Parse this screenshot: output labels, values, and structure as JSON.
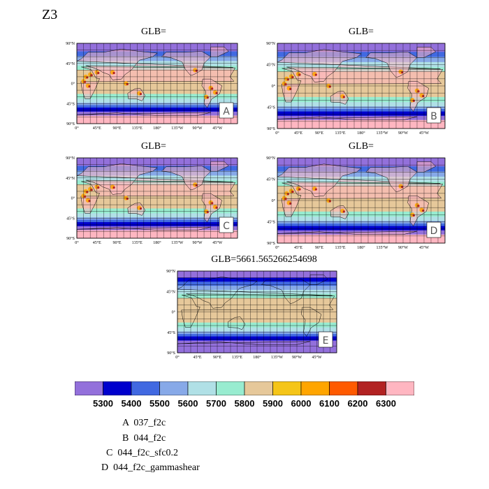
{
  "figure": {
    "title": "Z3"
  },
  "chart_data": [
    {
      "type": "heatmap",
      "panel": "A",
      "title": "GLB=",
      "tag": "A",
      "x_ticks": [
        "0°",
        "45°E",
        "90°E",
        "135°E",
        "180°",
        "135°W",
        "90°W",
        "45°W"
      ],
      "y_ticks": [
        "90°N",
        "45°N",
        "0°",
        "45°S",
        "90°S"
      ]
    },
    {
      "type": "heatmap",
      "panel": "B",
      "title": "GLB=",
      "tag": "B",
      "x_ticks": [
        "0°",
        "45°E",
        "90°E",
        "135°E",
        "180°",
        "135°W",
        "90°W",
        "45°W"
      ],
      "y_ticks": [
        "90°N",
        "45°N",
        "0°",
        "45°S",
        "90°S"
      ]
    },
    {
      "type": "heatmap",
      "panel": "C",
      "title": "GLB=",
      "tag": "C",
      "x_ticks": [
        "0°",
        "45°E",
        "90°E",
        "135°E",
        "180°",
        "135°W",
        "90°W",
        "45°W"
      ],
      "y_ticks": [
        "90°N",
        "45°N",
        "0°",
        "45°S",
        "90°S"
      ]
    },
    {
      "type": "heatmap",
      "panel": "D",
      "title": "GLB=",
      "tag": "D",
      "x_ticks": [
        "0°",
        "45°E",
        "90°E",
        "135°E",
        "180°",
        "135°W",
        "90°W",
        "45°W"
      ],
      "y_ticks": [
        "90°N",
        "45°N",
        "0°",
        "45°S",
        "90°S"
      ]
    },
    {
      "type": "heatmap",
      "panel": "E",
      "title": "GLB=5661.565266254698",
      "tag": "E",
      "x_ticks": [
        "0°",
        "45°E",
        "90°E",
        "135°E",
        "180°",
        "135°W",
        "90°W",
        "45°W"
      ],
      "y_ticks": [
        "90°N",
        "45°N",
        "0°",
        "45°S",
        "90°S"
      ]
    }
  ],
  "colorbar": {
    "colors": [
      "#9370db",
      "#0000cd",
      "#4169e1",
      "#87a9e8",
      "#b0e0e6",
      "#98ecd0",
      "#e6c89a",
      "#f5c518",
      "#ffa500",
      "#ff5a00",
      "#b22222",
      "#ffb6c1"
    ],
    "labels": [
      "5300",
      "5400",
      "5500",
      "5600",
      "5700",
      "5800",
      "5900",
      "6000",
      "6100",
      "6200",
      "6300"
    ]
  },
  "legend": [
    "A  037_f2c",
    "B  044_f2c",
    "C  044_f2c_sfc0.2",
    "D  044_f2c_gammashear"
  ]
}
